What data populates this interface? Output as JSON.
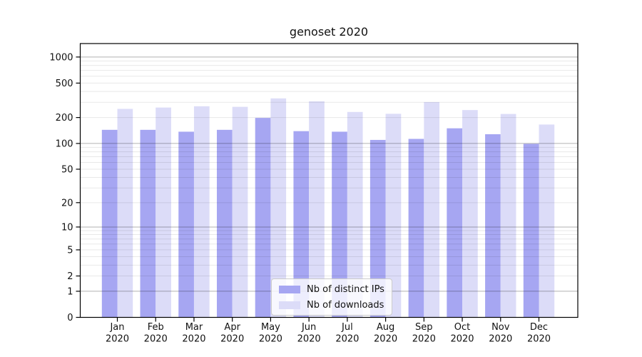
{
  "chart_data": {
    "type": "bar",
    "title": "genoset 2020",
    "year_label": "2020",
    "months": [
      "Jan",
      "Feb",
      "Mar",
      "Apr",
      "May",
      "Jun",
      "Jul",
      "Aug",
      "Sep",
      "Oct",
      "Nov",
      "Dec"
    ],
    "series": [
      {
        "name": "Nb of distinct IPs",
        "color": "#a6a6f2",
        "values": [
          144,
          144,
          137,
          144,
          198,
          139,
          137,
          110,
          113,
          150,
          128,
          99
        ]
      },
      {
        "name": "Nb of downloads",
        "color": "#dcdcf8",
        "values": [
          252,
          261,
          270,
          266,
          333,
          308,
          232,
          221,
          302,
          244,
          220,
          166
        ]
      }
    ],
    "yticks": [
      0,
      1,
      2,
      5,
      10,
      20,
      50,
      100,
      200,
      500,
      1000
    ],
    "yscale": "symlog",
    "ylim": [
      0,
      1430
    ],
    "grid": {
      "major": [
        1,
        10,
        100,
        1000
      ],
      "minor_subs": [
        2,
        3,
        4,
        5,
        6,
        7,
        8,
        9
      ]
    },
    "legend_position": "lower center"
  },
  "colors": {
    "major_grid": "rgba(0,0,0,0.30)",
    "minor_grid": "rgba(0,0,0,0.09)",
    "spine": "#000000",
    "text": "#111111"
  }
}
